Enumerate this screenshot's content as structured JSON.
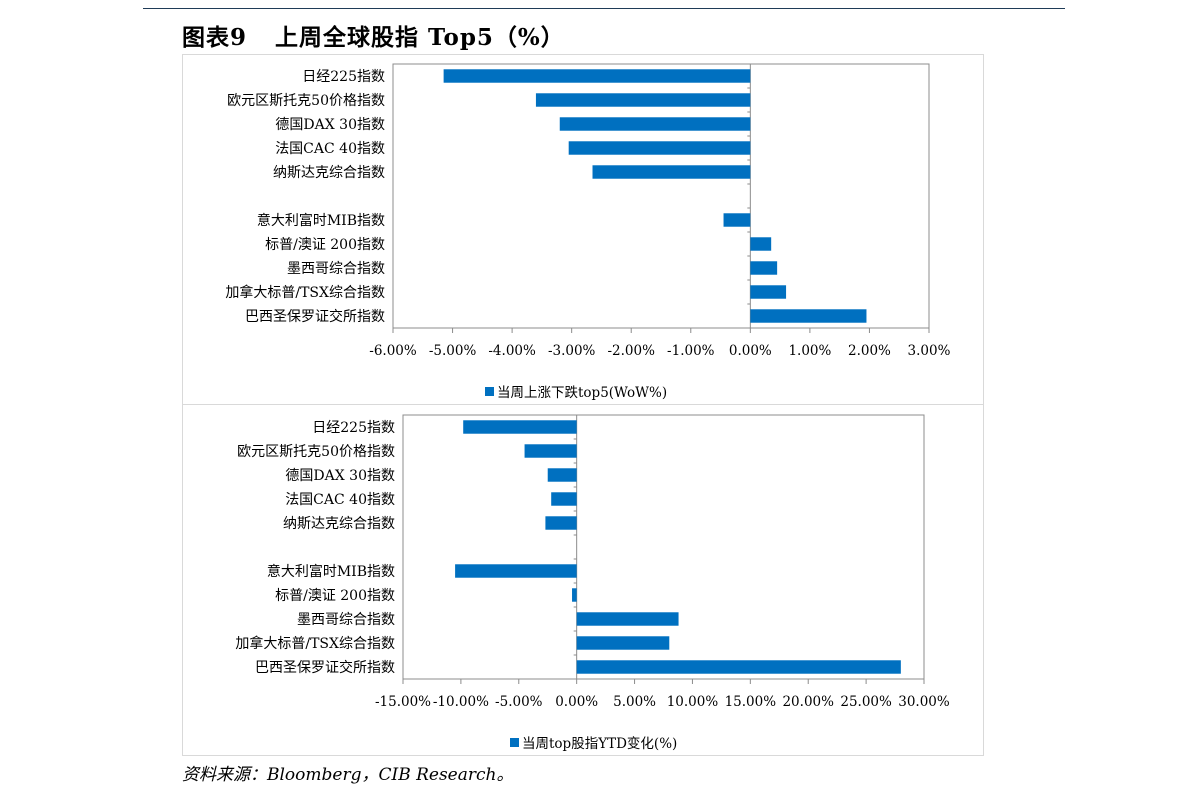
{
  "figure": {
    "title_prefix": "图表9",
    "title_main": "上周全球股指 Top5（%）",
    "source": "资料来源：Bloomberg，CIB Research。"
  },
  "chart_data": [
    {
      "type": "bar",
      "orientation": "horizontal",
      "categories": [
        "日经225指数",
        "欧元区斯托克50价格指数",
        "德国DAX 30指数",
        "法国CAC 40指数",
        "纳斯达克综合指数",
        "",
        "意大利富时MIB指数",
        "标普/澳证 200指数",
        "墨西哥综合指数",
        "加拿大标普/TSX综合指数",
        "巴西圣保罗证交所指数"
      ],
      "series": [
        {
          "name": "当周上涨下跌top5(WoW%)",
          "values": [
            -5.15,
            -3.6,
            -3.2,
            -3.05,
            -2.65,
            null,
            -0.45,
            0.35,
            0.45,
            0.6,
            1.95
          ],
          "color": "#0070c0"
        }
      ],
      "xlim": [
        -6,
        3
      ],
      "xticks": [
        -6,
        -5,
        -4,
        -3,
        -2,
        -1,
        0,
        1,
        2,
        3
      ],
      "tick_labels": [
        "-6.00%",
        "-5.00%",
        "-4.00%",
        "-3.00%",
        "-2.00%",
        "-1.00%",
        "0.00%",
        "1.00%",
        "2.00%",
        "3.00%"
      ],
      "legend_position": "bottom",
      "grid": false
    },
    {
      "type": "bar",
      "orientation": "horizontal",
      "categories": [
        "日经225指数",
        "欧元区斯托克50价格指数",
        "德国DAX 30指数",
        "法国CAC 40指数",
        "纳斯达克综合指数",
        "",
        "意大利富时MIB指数",
        "标普/澳证 200指数",
        "墨西哥综合指数",
        "加拿大标普/TSX综合指数",
        "巴西圣保罗证交所指数"
      ],
      "series": [
        {
          "name": "当周top股指YTD变化(%)",
          "values": [
            -9.8,
            -4.5,
            -2.5,
            -2.2,
            -2.7,
            null,
            -10.5,
            -0.4,
            8.8,
            8.0,
            28.0
          ],
          "color": "#0070c0"
        }
      ],
      "xlim": [
        -15,
        30
      ],
      "xticks": [
        -15,
        -10,
        -5,
        0,
        5,
        10,
        15,
        20,
        25,
        30
      ],
      "tick_labels": [
        "-15.00%",
        "-10.00%",
        "-5.00%",
        "0.00%",
        "5.00%",
        "10.00%",
        "15.00%",
        "20.00%",
        "25.00%",
        "30.00%"
      ],
      "legend_position": "bottom",
      "grid": false
    }
  ]
}
